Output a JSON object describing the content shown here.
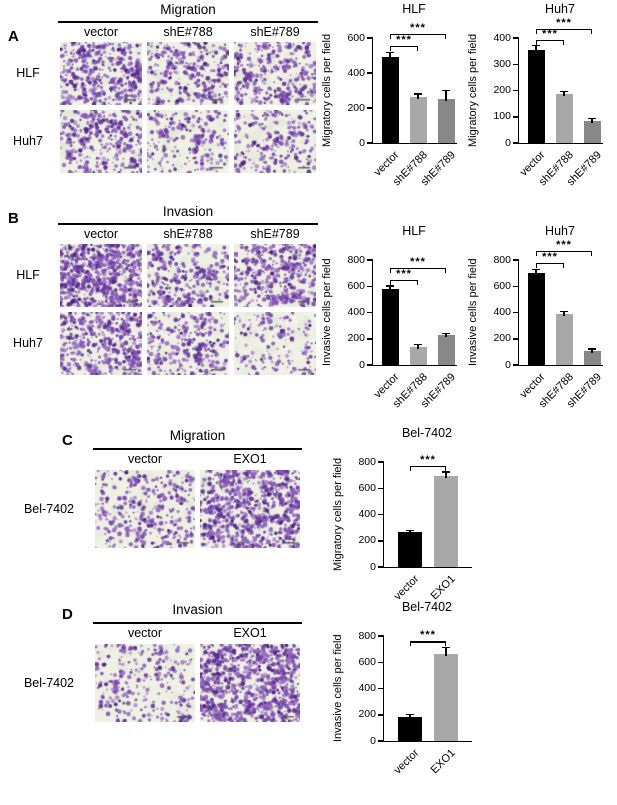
{
  "panels": {
    "A": {
      "letter": "A",
      "assay": "Migration",
      "col_headers": [
        "vector",
        "shE#788",
        "shE#789"
      ],
      "row_labels": [
        "HLF",
        "Huh7"
      ]
    },
    "B": {
      "letter": "B",
      "assay": "Invasion",
      "col_headers": [
        "vector",
        "shE#788",
        "shE#789"
      ],
      "row_labels": [
        "HLF",
        "Huh7"
      ]
    },
    "C": {
      "letter": "C",
      "assay": "Migration",
      "col_headers": [
        "vector",
        "EXO1"
      ],
      "row_labels": [
        "Bel-7402"
      ]
    },
    "D": {
      "letter": "D",
      "assay": "Invasion",
      "col_headers": [
        "vector",
        "EXO1"
      ],
      "row_labels": [
        "Bel-7402"
      ]
    }
  },
  "chart_data": [
    {
      "type": "bar",
      "panel": "A",
      "title": "HLF",
      "ylabel": "Migratory cells per field",
      "categories": [
        "vector",
        "shE#788",
        "shE#789"
      ],
      "values": [
        490,
        265,
        250
      ],
      "errors": [
        25,
        12,
        45
      ],
      "bar_colors": [
        "#000000",
        "#a8a8a8",
        "#888888"
      ],
      "ylim": [
        0,
        600
      ],
      "yticks": [
        0,
        200,
        400,
        600
      ],
      "significance": [
        {
          "from": 0,
          "to": 1,
          "label": "***"
        },
        {
          "from": 0,
          "to": 2,
          "label": "***"
        }
      ]
    },
    {
      "type": "bar",
      "panel": "A",
      "title": "Huh7",
      "ylabel": "Migratory cells per field",
      "categories": [
        "vector",
        "shE#788",
        "shE#789"
      ],
      "values": [
        355,
        185,
        85
      ],
      "errors": [
        15,
        8,
        6
      ],
      "bar_colors": [
        "#000000",
        "#a8a8a8",
        "#888888"
      ],
      "ylim": [
        0,
        400
      ],
      "yticks": [
        0,
        100,
        200,
        300,
        400
      ],
      "significance": [
        {
          "from": 0,
          "to": 1,
          "label": "***"
        },
        {
          "from": 0,
          "to": 2,
          "label": "***"
        }
      ]
    },
    {
      "type": "bar",
      "panel": "B",
      "title": "HLF",
      "ylabel": "Invasive cells per field",
      "categories": [
        "vector",
        "shE#788",
        "shE#789"
      ],
      "values": [
        580,
        140,
        225
      ],
      "errors": [
        18,
        10,
        12
      ],
      "bar_colors": [
        "#000000",
        "#a8a8a8",
        "#888888"
      ],
      "ylim": [
        0,
        800
      ],
      "yticks": [
        0,
        200,
        400,
        600,
        800
      ],
      "significance": [
        {
          "from": 0,
          "to": 1,
          "label": "***"
        },
        {
          "from": 0,
          "to": 2,
          "label": "***"
        }
      ]
    },
    {
      "type": "bar",
      "panel": "B",
      "title": "Huh7",
      "ylabel": "Invasive cells per field",
      "categories": [
        "vector",
        "shE#788",
        "shE#789"
      ],
      "values": [
        700,
        390,
        110
      ],
      "errors": [
        25,
        12,
        8
      ],
      "bar_colors": [
        "#000000",
        "#a8a8a8",
        "#888888"
      ],
      "ylim": [
        0,
        800
      ],
      "yticks": [
        0,
        200,
        400,
        600,
        800
      ],
      "significance": [
        {
          "from": 0,
          "to": 1,
          "label": "***"
        },
        {
          "from": 0,
          "to": 2,
          "label": "***"
        }
      ]
    },
    {
      "type": "bar",
      "panel": "C",
      "title": "Bel-7402",
      "ylabel": "Migratory cells per field",
      "categories": [
        "vector",
        "EXO1"
      ],
      "values": [
        265,
        690
      ],
      "errors": [
        10,
        30
      ],
      "bar_colors": [
        "#000000",
        "#a8a8a8"
      ],
      "ylim": [
        0,
        800
      ],
      "yticks": [
        0,
        200,
        400,
        600,
        800
      ],
      "significance": [
        {
          "from": 0,
          "to": 1,
          "label": "***"
        }
      ]
    },
    {
      "type": "bar",
      "panel": "D",
      "title": "Bel-7402",
      "ylabel": "Invasive cells per field",
      "categories": [
        "vector",
        "EXO1"
      ],
      "values": [
        185,
        660
      ],
      "errors": [
        10,
        45
      ],
      "bar_colors": [
        "#000000",
        "#a8a8a8"
      ],
      "ylim": [
        0,
        800
      ],
      "yticks": [
        0,
        200,
        400,
        600,
        800
      ],
      "significance": [
        {
          "from": 0,
          "to": 1,
          "label": "***"
        }
      ]
    }
  ]
}
